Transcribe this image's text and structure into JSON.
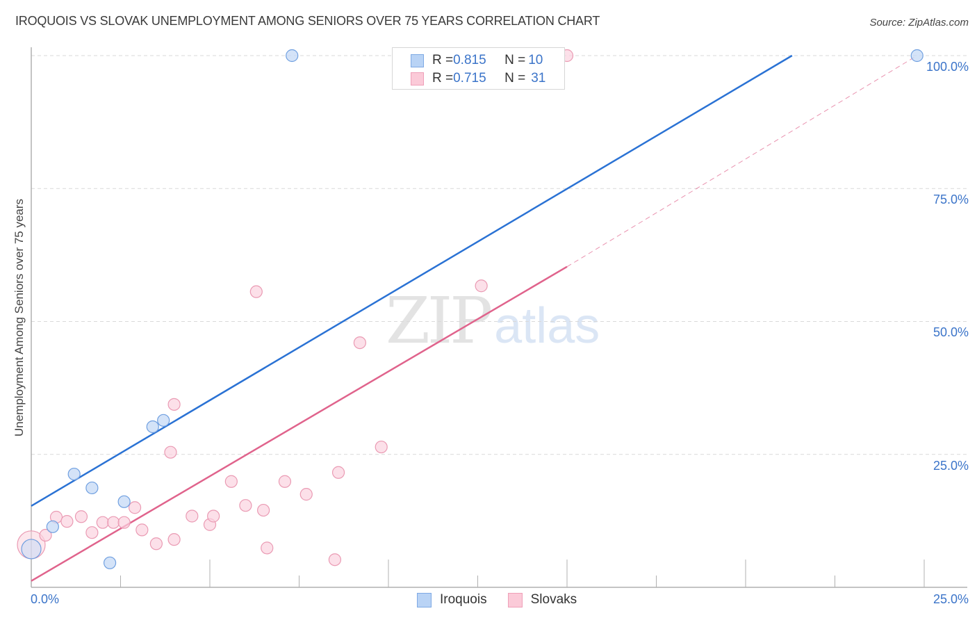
{
  "header": {
    "title": "IROQUOIS VS SLOVAK UNEMPLOYMENT AMONG SENIORS OVER 75 YEARS CORRELATION CHART",
    "source": "Source: ZipAtlas.com"
  },
  "axes": {
    "ylabel": "Unemployment Among Seniors over 75 years",
    "y_ticks": [
      "100.0%",
      "75.0%",
      "50.0%",
      "25.0%"
    ],
    "x_tick_left": "0.0%",
    "x_tick_right": "25.0%"
  },
  "watermark": {
    "zip": "ZIP",
    "atlas": "atlas"
  },
  "stats_legend": {
    "iroquois": {
      "r_label": "R = ",
      "r_value": "0.815",
      "n_label": "N = ",
      "n_value": "10"
    },
    "slovaks": {
      "r_label": "R = ",
      "r_value": "0.715",
      "n_label": "N = ",
      "n_value": "31"
    }
  },
  "legend": {
    "items": [
      {
        "label": "Iroquois",
        "color": "#a9c8f2"
      },
      {
        "label": "Slovaks",
        "color": "#f7b8cb"
      }
    ]
  },
  "colors": {
    "iroquois_fill": "#c6daf6",
    "iroquois_stroke": "#6f9fe0",
    "iroquois_line": "#2a72d4",
    "slovaks_fill": "#fbd3df",
    "slovaks_stroke": "#ea9ab3",
    "slovaks_line": "#e0638c",
    "tick_text": "#3b74c9",
    "grid": "#d9d9d9"
  },
  "chart_data": {
    "type": "scatter",
    "title": "Iroquois vs Slovak Unemployment Among Seniors over 75 years Correlation Chart",
    "xlabel": "",
    "ylabel": "Unemployment Among Seniors over 75 years",
    "xlim": [
      0,
      25
    ],
    "ylim": [
      0,
      100
    ],
    "x_ticks_labeled": [
      "0.0%",
      "25.0%"
    ],
    "y_ticks_labeled": [
      "25.0%",
      "50.0%",
      "75.0%",
      "100.0%"
    ],
    "grid": "horizontal dashed",
    "legend_position": "bottom center",
    "series": [
      {
        "name": "Iroquois",
        "r": 0.815,
        "n": 10,
        "points": [
          {
            "x": 0.0,
            "y": 7.2,
            "size": "large"
          },
          {
            "x": 0.6,
            "y": 11.4
          },
          {
            "x": 1.2,
            "y": 21.3
          },
          {
            "x": 1.7,
            "y": 18.7
          },
          {
            "x": 2.2,
            "y": 4.6
          },
          {
            "x": 2.6,
            "y": 16.1
          },
          {
            "x": 3.4,
            "y": 30.2
          },
          {
            "x": 3.7,
            "y": 31.4
          },
          {
            "x": 7.3,
            "y": 100.0
          },
          {
            "x": 24.8,
            "y": 100.0
          }
        ],
        "trendline": {
          "x0": 0,
          "y0": 15.3,
          "x1": 21.3,
          "y1": 100
        }
      },
      {
        "name": "Slovaks",
        "r": 0.715,
        "n": 31,
        "points": [
          {
            "x": 0.0,
            "y": 8.0,
            "size": "large"
          },
          {
            "x": 0.4,
            "y": 9.8
          },
          {
            "x": 0.7,
            "y": 13.2
          },
          {
            "x": 1.0,
            "y": 12.4
          },
          {
            "x": 1.4,
            "y": 13.3
          },
          {
            "x": 1.7,
            "y": 10.3
          },
          {
            "x": 2.0,
            "y": 12.2
          },
          {
            "x": 2.3,
            "y": 12.2
          },
          {
            "x": 2.6,
            "y": 12.2
          },
          {
            "x": 2.9,
            "y": 15.0
          },
          {
            "x": 3.1,
            "y": 10.8
          },
          {
            "x": 3.5,
            "y": 8.2
          },
          {
            "x": 3.9,
            "y": 25.4
          },
          {
            "x": 4.0,
            "y": 34.4
          },
          {
            "x": 4.0,
            "y": 9.0
          },
          {
            "x": 4.5,
            "y": 13.4
          },
          {
            "x": 5.0,
            "y": 11.8
          },
          {
            "x": 5.1,
            "y": 13.4
          },
          {
            "x": 5.6,
            "y": 19.9
          },
          {
            "x": 6.0,
            "y": 15.4
          },
          {
            "x": 6.3,
            "y": 55.6
          },
          {
            "x": 6.5,
            "y": 14.5
          },
          {
            "x": 6.6,
            "y": 7.4
          },
          {
            "x": 7.1,
            "y": 19.9
          },
          {
            "x": 7.7,
            "y": 17.5
          },
          {
            "x": 8.5,
            "y": 5.2
          },
          {
            "x": 8.6,
            "y": 21.6
          },
          {
            "x": 9.2,
            "y": 46.0
          },
          {
            "x": 9.8,
            "y": 26.4
          },
          {
            "x": 12.6,
            "y": 56.7
          },
          {
            "x": 15.0,
            "y": 100.0
          }
        ],
        "trendline": {
          "x0": 0,
          "y0": 1.2,
          "x1": 15.0,
          "y1": 60.3,
          "dashed_extension_to": {
            "x": 24.8,
            "y": 100
          }
        }
      }
    ]
  }
}
